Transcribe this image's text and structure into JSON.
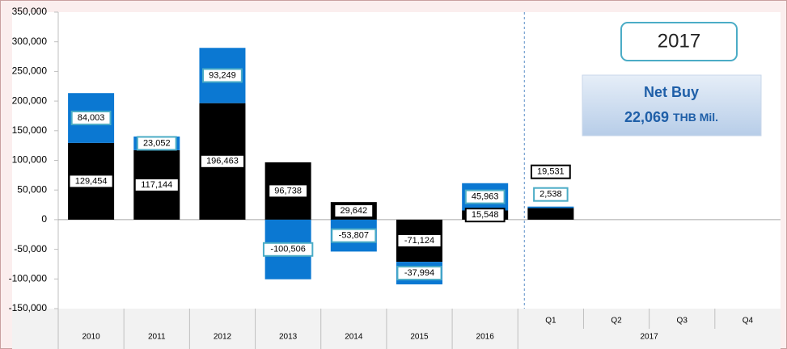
{
  "chart_data": {
    "type": "stacked_bar",
    "categories": [
      "2010",
      "2011",
      "2012",
      "2013",
      "2014",
      "2015",
      "2016",
      "Q1",
      "Q2",
      "Q3",
      "Q4"
    ],
    "category_group": "2017",
    "series": [
      {
        "color": "#000000",
        "label_border": "#000000",
        "values": [
          129454,
          117144,
          196463,
          96738,
          29642,
          -71124,
          15548,
          19531,
          null,
          null,
          null
        ],
        "value_labels": [
          "129,454",
          "117,144",
          "196,463",
          "96,738",
          "29,642",
          "-71,124",
          "15,548",
          "19,531",
          null,
          null,
          null
        ]
      },
      {
        "color": "#0b78d2",
        "label_border": "#4bacc6",
        "values": [
          84003,
          23052,
          93249,
          -100506,
          -53807,
          -37994,
          45963,
          2538,
          null,
          null,
          null
        ],
        "value_labels": [
          "84,003",
          "23,052",
          "93,249",
          "-100,506",
          "-53,807",
          "-37,994",
          "45,963",
          "2,538",
          null,
          null,
          null
        ]
      }
    ],
    "ylim": [
      -150000,
      350000
    ],
    "yticks": [
      {
        "value": -150000,
        "label": "-150,000"
      },
      {
        "value": -100000,
        "label": "-100,000"
      },
      {
        "value": -50000,
        "label": "-50,000"
      },
      0,
      {
        "value": 50000,
        "label": "50,000"
      },
      {
        "value": 100000,
        "label": "100,000"
      },
      {
        "value": 150000,
        "label": "150,000"
      },
      {
        "value": 200000,
        "label": "200,000"
      },
      {
        "value": 250000,
        "label": "250,000"
      },
      {
        "value": 300000,
        "label": "300,000"
      },
      {
        "value": 350000,
        "label": "350,000"
      }
    ],
    "grid": false,
    "annotations": {
      "period": "2017",
      "net_buy_label": "Net Buy",
      "net_buy_value": "22,069",
      "net_buy_unit": "THB Mil."
    }
  }
}
